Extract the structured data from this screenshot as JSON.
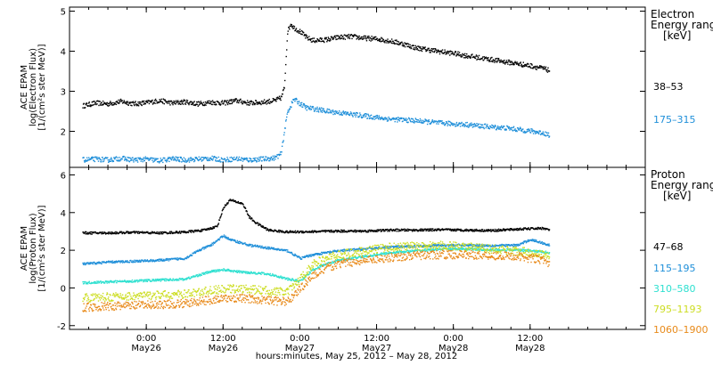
{
  "chart_data": [
    {
      "type": "scatter",
      "panel": "electron",
      "ylabel_lines": [
        "ACE EPAM",
        "log(Electron Flux)",
        "[1/(cm²s ster MeV)]"
      ],
      "ylim": [
        1.1,
        5.1
      ],
      "yticks": [
        2,
        3,
        4,
        5
      ],
      "legend_title_lines": [
        "Electron",
        "Energy ranges",
        "[keV]"
      ],
      "series": [
        {
          "name": "38–53",
          "color": "#000000",
          "points": [
            [
              -10,
              2.65
            ],
            [
              -8,
              2.72
            ],
            [
              -6,
              2.7
            ],
            [
              -4,
              2.76
            ],
            [
              -2,
              2.7
            ],
            [
              0,
              2.73
            ],
            [
              2,
              2.78
            ],
            [
              4,
              2.72
            ],
            [
              6,
              2.75
            ],
            [
              8,
              2.7
            ],
            [
              10,
              2.74
            ],
            [
              12,
              2.72
            ],
            [
              14,
              2.78
            ],
            [
              16,
              2.72
            ],
            [
              18,
              2.74
            ],
            [
              20,
              2.78
            ],
            [
              21,
              2.85
            ],
            [
              21.5,
              3.1
            ],
            [
              22,
              4.5
            ],
            [
              22.5,
              4.7
            ],
            [
              23,
              4.6
            ],
            [
              24,
              4.5
            ],
            [
              25,
              4.35
            ],
            [
              26,
              4.28
            ],
            [
              28,
              4.3
            ],
            [
              30,
              4.36
            ],
            [
              32,
              4.38
            ],
            [
              34,
              4.34
            ],
            [
              36,
              4.32
            ],
            [
              38,
              4.27
            ],
            [
              40,
              4.2
            ],
            [
              42,
              4.1
            ],
            [
              44,
              4.05
            ],
            [
              46,
              4.0
            ],
            [
              48,
              3.96
            ],
            [
              50,
              3.9
            ],
            [
              52,
              3.85
            ],
            [
              54,
              3.8
            ],
            [
              56,
              3.75
            ],
            [
              58,
              3.7
            ],
            [
              60,
              3.65
            ],
            [
              62,
              3.58
            ],
            [
              63,
              3.53
            ]
          ]
        },
        {
          "name": "175–315",
          "color": "#1f8fd9",
          "points": [
            [
              -10,
              1.3
            ],
            [
              -8,
              1.32
            ],
            [
              -6,
              1.3
            ],
            [
              -4,
              1.34
            ],
            [
              -2,
              1.3
            ],
            [
              0,
              1.32
            ],
            [
              2,
              1.28
            ],
            [
              4,
              1.33
            ],
            [
              6,
              1.3
            ],
            [
              8,
              1.32
            ],
            [
              10,
              1.34
            ],
            [
              12,
              1.3
            ],
            [
              14,
              1.33
            ],
            [
              16,
              1.3
            ],
            [
              18,
              1.32
            ],
            [
              20,
              1.35
            ],
            [
              21,
              1.45
            ],
            [
              21.5,
              2.0
            ],
            [
              22,
              2.5
            ],
            [
              22.5,
              2.65
            ],
            [
              23,
              2.82
            ],
            [
              24,
              2.7
            ],
            [
              25,
              2.6
            ],
            [
              26,
              2.58
            ],
            [
              28,
              2.52
            ],
            [
              30,
              2.48
            ],
            [
              32,
              2.44
            ],
            [
              34,
              2.4
            ],
            [
              36,
              2.36
            ],
            [
              38,
              2.32
            ],
            [
              40,
              2.3
            ],
            [
              42,
              2.28
            ],
            [
              44,
              2.25
            ],
            [
              46,
              2.22
            ],
            [
              48,
              2.2
            ],
            [
              50,
              2.18
            ],
            [
              52,
              2.15
            ],
            [
              54,
              2.12
            ],
            [
              56,
              2.1
            ],
            [
              58,
              2.06
            ],
            [
              60,
              2.02
            ],
            [
              62,
              1.97
            ],
            [
              63,
              1.92
            ]
          ]
        }
      ],
      "labels_range_text": [
        "38–53",
        "175–315"
      ]
    },
    {
      "type": "scatter",
      "panel": "proton",
      "ylabel_lines": [
        "ACE EPAM",
        "log(Proton Flux)",
        "[1/(cm²s ster MeV)]"
      ],
      "ylim": [
        -2.2,
        6.4
      ],
      "yticks": [
        -2,
        0,
        2,
        4,
        6
      ],
      "legend_title_lines": [
        "Proton",
        "Energy ranges",
        "[keV]"
      ],
      "series": [
        {
          "name": "47–68",
          "color": "#000000",
          "points": [
            [
              -10,
              2.95
            ],
            [
              -6,
              2.95
            ],
            [
              -2,
              2.98
            ],
            [
              2,
              2.95
            ],
            [
              6,
              3.0
            ],
            [
              9,
              3.1
            ],
            [
              11,
              3.3
            ],
            [
              12,
              4.3
            ],
            [
              13,
              4.7
            ],
            [
              14,
              4.6
            ],
            [
              15,
              4.5
            ],
            [
              16,
              3.8
            ],
            [
              17,
              3.5
            ],
            [
              18,
              3.3
            ],
            [
              19,
              3.1
            ],
            [
              22,
              3.0
            ],
            [
              26,
              3.02
            ],
            [
              30,
              3.05
            ],
            [
              34,
              3.05
            ],
            [
              38,
              3.1
            ],
            [
              42,
              3.1
            ],
            [
              46,
              3.12
            ],
            [
              50,
              3.1
            ],
            [
              54,
              3.08
            ],
            [
              58,
              3.15
            ],
            [
              62,
              3.2
            ],
            [
              63,
              3.1
            ]
          ]
        },
        {
          "name": "115–195",
          "color": "#1f8fd9",
          "points": [
            [
              -10,
              1.3
            ],
            [
              -6,
              1.4
            ],
            [
              -2,
              1.45
            ],
            [
              2,
              1.5
            ],
            [
              6,
              1.6
            ],
            [
              8,
              2.0
            ],
            [
              10,
              2.3
            ],
            [
              12,
              2.8
            ],
            [
              13,
              2.6
            ],
            [
              14,
              2.5
            ],
            [
              16,
              2.3
            ],
            [
              18,
              2.2
            ],
            [
              20,
              2.1
            ],
            [
              22,
              2.0
            ],
            [
              24,
              1.6
            ],
            [
              26,
              1.8
            ],
            [
              28,
              1.9
            ],
            [
              30,
              2.0
            ],
            [
              34,
              2.1
            ],
            [
              38,
              2.2
            ],
            [
              42,
              2.25
            ],
            [
              46,
              2.3
            ],
            [
              50,
              2.3
            ],
            [
              54,
              2.28
            ],
            [
              58,
              2.3
            ],
            [
              60,
              2.6
            ],
            [
              62,
              2.4
            ],
            [
              63,
              2.3
            ]
          ]
        },
        {
          "name": "310–580",
          "color": "#2ee0d0",
          "points": [
            [
              -10,
              0.3
            ],
            [
              -6,
              0.35
            ],
            [
              -2,
              0.4
            ],
            [
              2,
              0.45
            ],
            [
              6,
              0.5
            ],
            [
              8,
              0.7
            ],
            [
              10,
              0.9
            ],
            [
              12,
              1.0
            ],
            [
              14,
              0.9
            ],
            [
              16,
              0.85
            ],
            [
              18,
              0.8
            ],
            [
              20,
              0.7
            ],
            [
              22,
              0.5
            ],
            [
              24,
              0.4
            ],
            [
              26,
              1.0
            ],
            [
              28,
              1.3
            ],
            [
              30,
              1.5
            ],
            [
              34,
              1.7
            ],
            [
              38,
              1.9
            ],
            [
              42,
              2.0
            ],
            [
              46,
              2.1
            ],
            [
              50,
              2.1
            ],
            [
              54,
              2.05
            ],
            [
              58,
              2.05
            ],
            [
              62,
              1.95
            ],
            [
              63,
              1.9
            ]
          ]
        },
        {
          "name": "795–1193",
          "color": "#ccdd22",
          "points": [
            [
              -10,
              -0.5
            ],
            [
              -6,
              -0.45
            ],
            [
              -2,
              -0.4
            ],
            [
              2,
              -0.35
            ],
            [
              6,
              -0.3
            ],
            [
              10,
              -0.1
            ],
            [
              14,
              0.0
            ],
            [
              18,
              -0.1
            ],
            [
              22,
              -0.2
            ],
            [
              24,
              0.5
            ],
            [
              26,
              1.3
            ],
            [
              28,
              1.6
            ],
            [
              30,
              1.8
            ],
            [
              34,
              2.0
            ],
            [
              38,
              2.2
            ],
            [
              42,
              2.25
            ],
            [
              46,
              2.3
            ],
            [
              50,
              2.2
            ],
            [
              54,
              2.1
            ],
            [
              58,
              2.0
            ],
            [
              62,
              1.8
            ],
            [
              63,
              1.7
            ]
          ]
        },
        {
          "name": "1060–1900",
          "color": "#e88a1a",
          "points": [
            [
              -10,
              -1.0
            ],
            [
              -6,
              -0.95
            ],
            [
              -2,
              -0.9
            ],
            [
              2,
              -0.85
            ],
            [
              6,
              -0.8
            ],
            [
              10,
              -0.6
            ],
            [
              14,
              -0.5
            ],
            [
              18,
              -0.6
            ],
            [
              22,
              -0.7
            ],
            [
              24,
              0.0
            ],
            [
              26,
              0.7
            ],
            [
              28,
              1.1
            ],
            [
              30,
              1.3
            ],
            [
              34,
              1.5
            ],
            [
              38,
              1.65
            ],
            [
              42,
              1.75
            ],
            [
              46,
              1.8
            ],
            [
              50,
              1.8
            ],
            [
              54,
              1.75
            ],
            [
              58,
              1.7
            ],
            [
              62,
              1.5
            ],
            [
              63,
              1.35
            ]
          ]
        }
      ]
    }
  ],
  "x_axis": {
    "range_hours": [
      -12,
      78
    ],
    "ticks": [
      {
        "h": 0,
        "time": "0:00",
        "date": "May26"
      },
      {
        "h": 12,
        "time": "12:00",
        "date": "May26"
      },
      {
        "h": 24,
        "time": "0:00",
        "date": "May27"
      },
      {
        "h": 36,
        "time": "12:00",
        "date": "May27"
      },
      {
        "h": 48,
        "time": "0:00",
        "date": "May28"
      },
      {
        "h": 60,
        "time": "12:00",
        "date": "May28"
      }
    ],
    "label": "hours:minutes, May 25, 2012 – May 28, 2012"
  }
}
